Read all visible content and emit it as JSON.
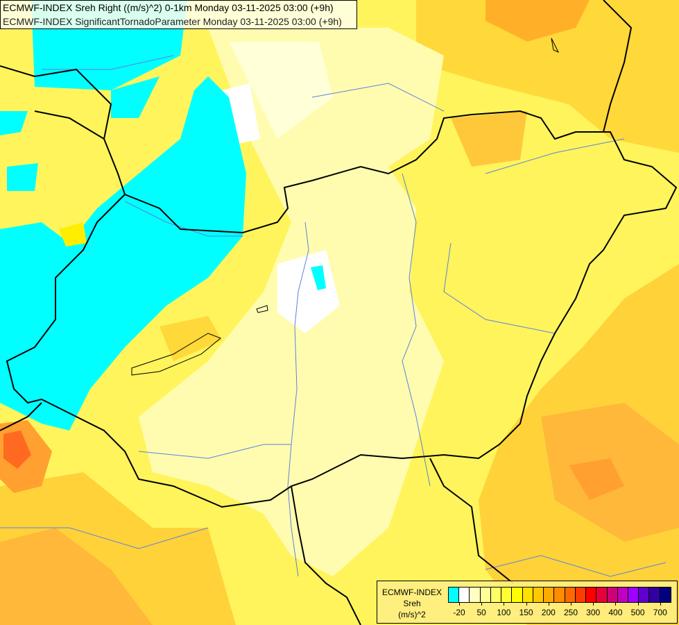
{
  "title": {
    "line1": "ECMWF-INDEX Sreh Right ((m/s)^2) 0-1km Monday 03-11-2025 03:00 (+9h)",
    "line2": "ECMWF-INDEX SignificantTornadoParameter Monday 03-11-2025 03:00 (+9h)"
  },
  "legend": {
    "source": "ECMWF-INDEX",
    "parameter": "Sreh",
    "unit": "(m/s)^2",
    "colors": [
      "#00ffff",
      "#ffffff",
      "#ffffc0",
      "#ffff99",
      "#ffff66",
      "#ffff33",
      "#ffff00",
      "#ffe000",
      "#ffc800",
      "#ffaa00",
      "#ff8c00",
      "#ff6a00",
      "#ff3c00",
      "#ff0000",
      "#e8003c",
      "#d0007a",
      "#c000c0",
      "#a000ff",
      "#6000d0",
      "#3000a0",
      "#000080"
    ],
    "tick_labels": [
      "-20",
      "50",
      "100",
      "150",
      "200",
      "250",
      "300",
      "400",
      "500",
      "700"
    ]
  },
  "colors": {
    "border": "#000000",
    "river": "#5a82dc"
  }
}
